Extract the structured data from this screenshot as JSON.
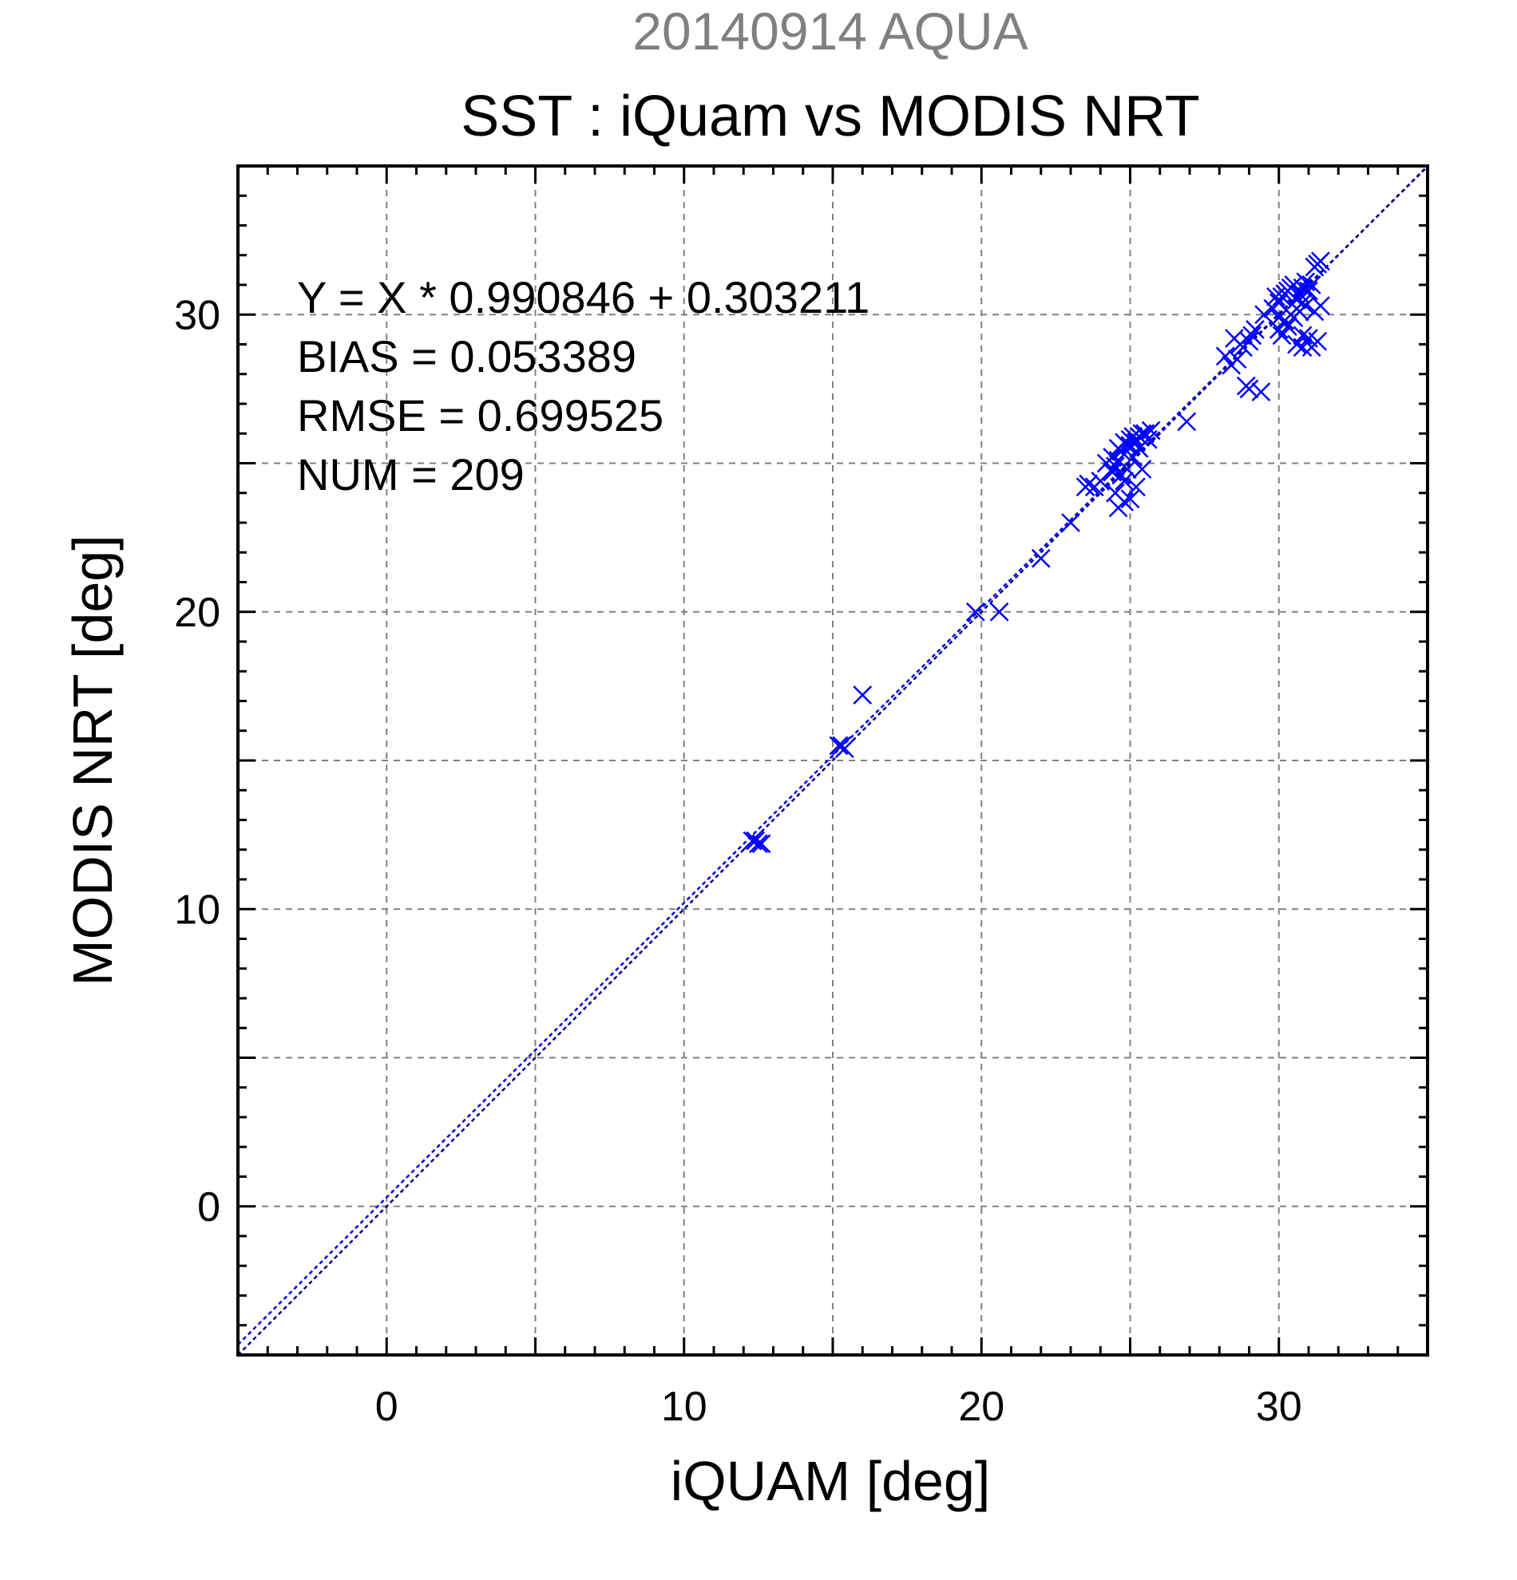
{
  "chart_data": {
    "type": "scatter",
    "subtitle": "20140914 AQUA",
    "title": "SST : iQuam vs MODIS NRT",
    "xlabel": "iQUAM [deg]",
    "ylabel": "MODIS NRT [deg]",
    "xlim": [
      -5,
      35
    ],
    "ylim": [
      -5,
      35
    ],
    "xticks": [
      0,
      10,
      20,
      30
    ],
    "yticks": [
      0,
      10,
      20,
      30
    ],
    "grid": true,
    "colors": {
      "points": "#0000ff",
      "fit_line": "#0000ff",
      "identity_line": "#000080",
      "grid": "#808080",
      "date": "#808080"
    },
    "annotations": [
      "Y = X * 0.990846 + 0.303211",
      "BIAS = 0.053389",
      "RMSE = 0.699525",
      "NUM = 209"
    ],
    "lines": [
      {
        "kind": "fit",
        "slope": 0.990846,
        "intercept": 0.303211
      },
      {
        "kind": "identity",
        "slope": 1,
        "intercept": 0
      }
    ],
    "series": [
      {
        "marker": "x",
        "x": [
          12.3,
          12.5,
          12.6,
          12.4,
          15.2,
          15.4,
          15.3,
          16.0,
          19.8,
          20.6,
          22.0,
          23.0,
          23.5,
          23.6,
          23.8,
          24.0,
          24.2,
          24.4,
          24.5,
          24.6,
          24.7,
          24.8,
          24.9,
          25.0,
          25.1,
          25.2,
          25.3,
          25.4,
          25.5,
          25.6,
          25.7,
          24.5,
          24.6,
          24.8,
          25.0,
          25.2,
          24.7,
          24.9,
          25.1,
          25.3,
          24.4,
          24.6,
          25.0,
          25.4,
          24.8,
          26.9,
          28.2,
          28.4,
          28.6,
          28.8,
          29.0,
          29.1,
          28.5,
          28.7,
          29.2,
          29.4,
          28.9,
          29.0,
          29.5,
          29.8,
          30.0,
          30.1,
          30.2,
          30.3,
          30.4,
          30.5,
          30.6,
          30.7,
          30.8,
          30.9,
          31.0,
          31.1,
          31.2,
          31.3,
          31.4,
          30.0,
          30.2,
          30.4,
          30.6,
          30.8,
          30.1,
          30.3,
          30.5,
          30.7,
          30.9,
          31.2,
          31.4,
          30.8,
          31.0,
          31.3,
          29.9,
          30.0,
          30.6,
          30.8,
          31.1
        ],
        "y": [
          12.3,
          12.2,
          12.2,
          12.3,
          15.5,
          15.4,
          15.5,
          17.2,
          20.0,
          20.0,
          21.8,
          23.0,
          24.2,
          24.3,
          24.2,
          24.4,
          25.0,
          25.2,
          24.9,
          25.5,
          25.4,
          25.7,
          25.6,
          25.8,
          25.9,
          25.7,
          25.9,
          26.0,
          26.0,
          25.8,
          26.1,
          24.0,
          23.5,
          23.7,
          23.8,
          24.2,
          24.6,
          24.8,
          25.2,
          25.5,
          24.7,
          25.1,
          25.6,
          24.8,
          24.4,
          26.4,
          28.6,
          28.3,
          28.5,
          28.9,
          29.1,
          29.3,
          29.2,
          29.0,
          29.5,
          27.4,
          27.6,
          27.5,
          30.0,
          30.2,
          30.4,
          30.6,
          30.7,
          30.8,
          30.9,
          31.0,
          30.5,
          30.7,
          30.9,
          31.1,
          30.8,
          31.0,
          31.6,
          31.7,
          31.8,
          29.5,
          29.8,
          30.0,
          30.2,
          30.4,
          29.3,
          29.6,
          29.9,
          30.1,
          30.3,
          30.1,
          30.3,
          28.9,
          29.2,
          29.1,
          30.6,
          29.9,
          29.0,
          29.3,
          28.9
        ]
      }
    ]
  }
}
